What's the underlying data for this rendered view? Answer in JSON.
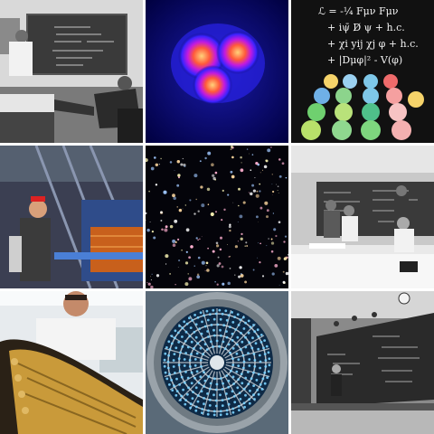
{
  "tiles": [
    {
      "subject": "physicists-at-blackboard-photo"
    },
    {
      "subject": "three-lobed-heat-intensity-map"
    },
    {
      "subject": "lagrangian-equation-with-cupcakes"
    },
    {
      "subject": "particle-detector-with-worker"
    },
    {
      "subject": "deep-field-galaxies"
    },
    {
      "subject": "physicists-meeting-at-chalkboards"
    },
    {
      "subject": "scientist-with-detector-module"
    },
    {
      "subject": "circular-detector-array"
    },
    {
      "subject": "lecture-hall-with-chalkboards"
    }
  ],
  "equation_lines": [
    "ℒ = -¼ Fμν Fμν",
    "+ iψ̄ D̸ ψ + h.c.",
    "+ χi yij χj φ + h.c.",
    "+ |Dμφ|² - V(φ)"
  ],
  "colors": {
    "background": "#ffffff",
    "heatmap_bg": "#0a0a6e",
    "chalkboard": "#1a1a1a",
    "detector_orange": "#c8601c",
    "gold_module": "#c99a3a"
  }
}
